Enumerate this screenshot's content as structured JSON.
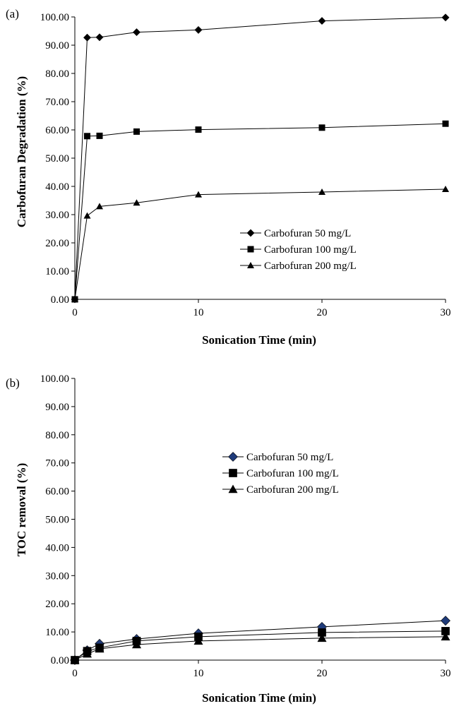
{
  "chart_data": [
    {
      "type": "line",
      "panel_label": "(a)",
      "xlabel": "Sonication Time (min)",
      "ylabel": "Carbofuran Degradation (%)",
      "xlim": [
        0,
        30
      ],
      "ylim": [
        0,
        100
      ],
      "xticks": [
        "0",
        "10",
        "20",
        "30"
      ],
      "yticks": [
        "0.00",
        "10.00",
        "20.00",
        "30.00",
        "40.00",
        "50.00",
        "60.00",
        "70.00",
        "80.00",
        "90.00",
        "100.00"
      ],
      "grid": false,
      "legend_position": "right-middle",
      "series": [
        {
          "name": "Carbofuran 50 mg/L",
          "marker": "diamond",
          "color": "#000000",
          "x": [
            0,
            1,
            2,
            5,
            10,
            20,
            30
          ],
          "y": [
            0,
            92.7,
            92.8,
            94.6,
            95.4,
            98.6,
            99.8
          ]
        },
        {
          "name": "Carbofuran 100 mg/L",
          "marker": "square",
          "color": "#000000",
          "x": [
            0,
            1,
            2,
            5,
            10,
            20,
            30
          ],
          "y": [
            0,
            57.8,
            57.9,
            59.4,
            60.1,
            60.8,
            62.2
          ]
        },
        {
          "name": "Carbofuran 200 mg/L",
          "marker": "triangle",
          "color": "#000000",
          "x": [
            0,
            1,
            2,
            5,
            10,
            20,
            30
          ],
          "y": [
            0,
            29.6,
            32.9,
            34.2,
            37.1,
            38.0,
            39.0
          ]
        }
      ]
    },
    {
      "type": "line",
      "panel_label": "(b)",
      "xlabel": "Sonication Time (min)",
      "ylabel": "TOC removal (%)",
      "xlim": [
        0,
        30
      ],
      "ylim": [
        0,
        100
      ],
      "xticks": [
        "0",
        "10",
        "20",
        "30"
      ],
      "yticks": [
        "0.00",
        "10.00",
        "20.00",
        "30.00",
        "40.00",
        "50.00",
        "60.00",
        "70.00",
        "80.00",
        "90.00",
        "100.00"
      ],
      "grid": false,
      "legend_position": "upper-middle",
      "series": [
        {
          "name": "Carbofuran 50 mg/L",
          "marker": "diamond",
          "color": "#1f3b7a",
          "x": [
            0,
            1,
            2,
            5,
            10,
            20,
            30
          ],
          "y": [
            0,
            3.5,
            5.8,
            7.5,
            9.5,
            11.8,
            14.0
          ]
        },
        {
          "name": "Carbofuran 100 mg/L",
          "marker": "square",
          "color": "#000000",
          "x": [
            0,
            1,
            2,
            5,
            10,
            20,
            30
          ],
          "y": [
            0,
            3.2,
            4.4,
            6.8,
            8.3,
            9.8,
            10.3
          ]
        },
        {
          "name": "Carbofuran 200 mg/L",
          "marker": "triangle",
          "color": "#000000",
          "x": [
            0,
            1,
            2,
            5,
            10,
            20,
            30
          ],
          "y": [
            0,
            2.2,
            4.0,
            5.5,
            6.8,
            7.8,
            8.3
          ]
        }
      ]
    }
  ]
}
